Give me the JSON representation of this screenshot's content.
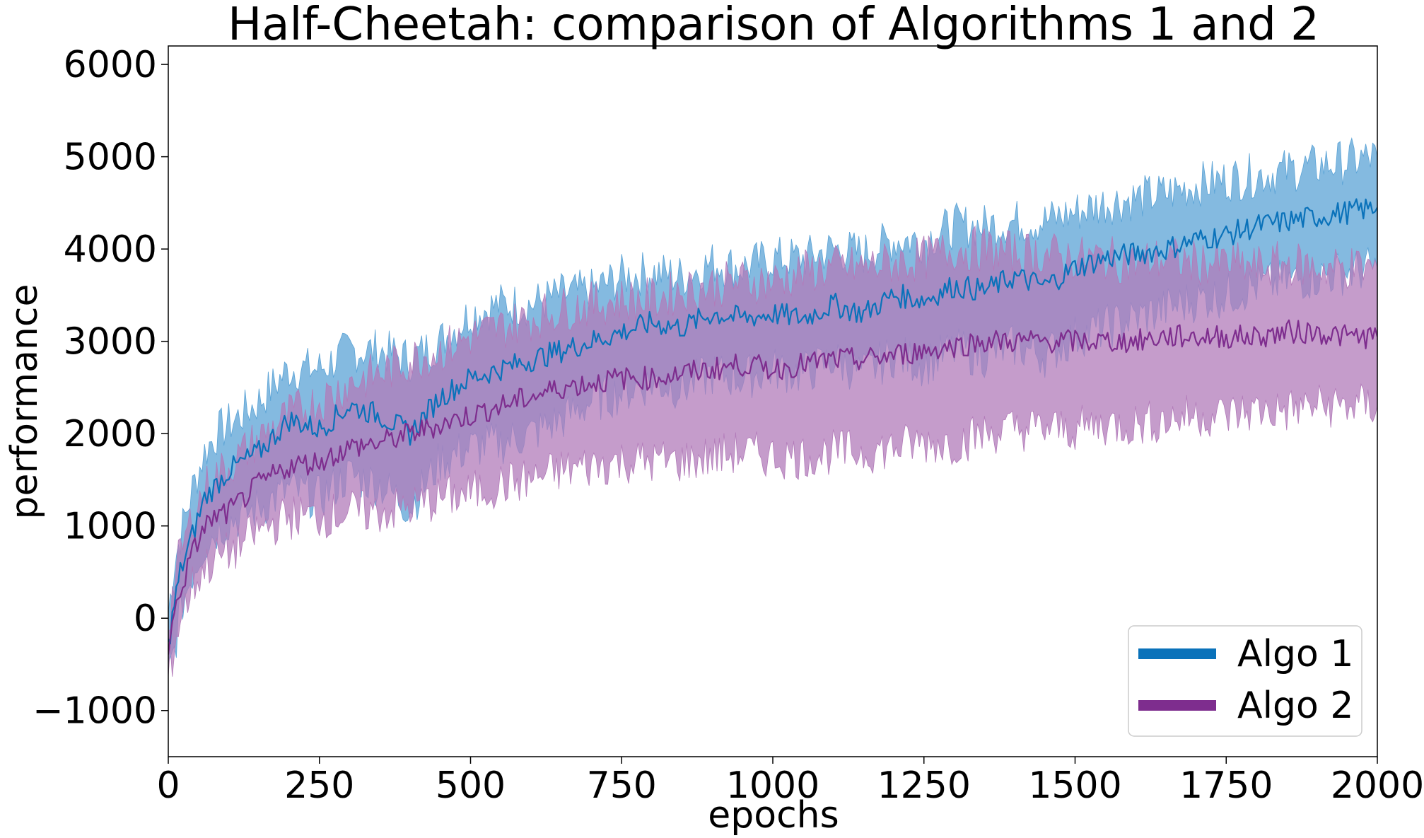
{
  "chart_data": {
    "type": "line",
    "title": "Half-Cheetah: comparison of Algorithms 1 and 2",
    "xlabel": "epochs",
    "ylabel": "performance",
    "xlim": [
      0,
      2000
    ],
    "ylim": [
      -1500,
      6200
    ],
    "xticks": [
      0,
      250,
      500,
      750,
      1000,
      1250,
      1500,
      1750,
      2000
    ],
    "yticks": [
      -1000,
      0,
      1000,
      2000,
      3000,
      4000,
      5000,
      6000
    ],
    "xtick_labels": [
      "0",
      "250",
      "500",
      "750",
      "1000",
      "1250",
      "1500",
      "1750",
      "2000"
    ],
    "ytick_labels": [
      "−1000",
      "0",
      "1000",
      "2000",
      "3000",
      "4000",
      "5000",
      "6000"
    ],
    "grid": false,
    "legend_position": "bottom-right",
    "series": [
      {
        "name": "Algo 1",
        "color": "#1f77b4",
        "line_color": "#0a72ba",
        "band_color": "#5ba3d6",
        "x": [
          0,
          10,
          20,
          40,
          60,
          80,
          100,
          150,
          200,
          250,
          300,
          350,
          400,
          450,
          500,
          550,
          600,
          650,
          700,
          750,
          800,
          850,
          900,
          950,
          1000,
          1050,
          1100,
          1150,
          1200,
          1250,
          1300,
          1350,
          1400,
          1450,
          1500,
          1550,
          1600,
          1650,
          1700,
          1750,
          1800,
          1850,
          1900,
          1950,
          2000
        ],
        "mean": [
          -300,
          150,
          500,
          900,
          1300,
          1450,
          1600,
          1800,
          2150,
          2050,
          2300,
          2200,
          2000,
          2400,
          2600,
          2700,
          2800,
          2900,
          3000,
          3100,
          3200,
          3150,
          3300,
          3250,
          3300,
          3250,
          3400,
          3300,
          3500,
          3450,
          3600,
          3550,
          3700,
          3600,
          3800,
          3900,
          3950,
          4000,
          4100,
          4150,
          4250,
          4300,
          4350,
          4400,
          4450
        ],
        "upper": [
          50,
          600,
          900,
          1400,
          1800,
          2000,
          2100,
          2350,
          2700,
          2700,
          2900,
          2900,
          2800,
          3000,
          3300,
          3400,
          3400,
          3500,
          3550,
          3700,
          3750,
          3700,
          3850,
          3800,
          3900,
          3900,
          4000,
          3950,
          4100,
          4100,
          4250,
          4250,
          4300,
          4300,
          4400,
          4500,
          4550,
          4600,
          4700,
          4750,
          4800,
          4850,
          4900,
          4950,
          5000
        ],
        "lower": [
          -650,
          -350,
          100,
          500,
          800,
          950,
          1050,
          1200,
          1400,
          1300,
          1550,
          1450,
          1200,
          1700,
          1850,
          1900,
          2000,
          2150,
          2350,
          2450,
          2550,
          2500,
          2650,
          2600,
          2700,
          2650,
          2800,
          2650,
          2850,
          2750,
          2900,
          2850,
          2950,
          2850,
          3050,
          3150,
          3250,
          3350,
          3450,
          3500,
          3600,
          3650,
          3700,
          3750,
          3800
        ]
      },
      {
        "name": "Algo 2",
        "color": "#7b2a8a",
        "line_color": "#7e2d8e",
        "band_color": "#b27bb9",
        "x": [
          0,
          10,
          20,
          40,
          60,
          80,
          100,
          150,
          200,
          250,
          300,
          350,
          400,
          450,
          500,
          550,
          600,
          650,
          700,
          750,
          800,
          850,
          900,
          950,
          1000,
          1050,
          1100,
          1150,
          1200,
          1250,
          1300,
          1350,
          1400,
          1450,
          1500,
          1550,
          1600,
          1650,
          1700,
          1750,
          1800,
          1850,
          1900,
          1950,
          2000
        ],
        "mean": [
          -350,
          50,
          300,
          700,
          1000,
          1100,
          1150,
          1450,
          1650,
          1700,
          1850,
          1900,
          2000,
          2100,
          2200,
          2300,
          2400,
          2500,
          2550,
          2600,
          2600,
          2650,
          2700,
          2750,
          2700,
          2750,
          2800,
          2800,
          2850,
          2900,
          2950,
          3000,
          3000,
          3000,
          3000,
          3000,
          3000,
          3050,
          3050,
          3050,
          3050,
          3100,
          3100,
          3050,
          3050
        ],
        "upper": [
          -50,
          400,
          700,
          1100,
          1400,
          1550,
          1650,
          1950,
          2200,
          2350,
          2550,
          2650,
          2800,
          2900,
          3050,
          3150,
          3250,
          3350,
          3400,
          3450,
          3450,
          3550,
          3600,
          3650,
          3650,
          3750,
          3800,
          3800,
          3850,
          3900,
          4000,
          4000,
          3950,
          3950,
          3900,
          3900,
          3850,
          3900,
          3850,
          3850,
          3800,
          3850,
          3800,
          3800,
          3800
        ],
        "lower": [
          -650,
          -300,
          0,
          350,
          550,
          650,
          700,
          950,
          1100,
          1100,
          1150,
          1150,
          1200,
          1300,
          1350,
          1450,
          1500,
          1600,
          1650,
          1700,
          1700,
          1700,
          1750,
          1800,
          1750,
          1750,
          1800,
          1800,
          1850,
          1900,
          1900,
          2000,
          2050,
          2050,
          2050,
          2100,
          2100,
          2150,
          2200,
          2200,
          2250,
          2250,
          2300,
          2300,
          2300
        ]
      }
    ]
  }
}
